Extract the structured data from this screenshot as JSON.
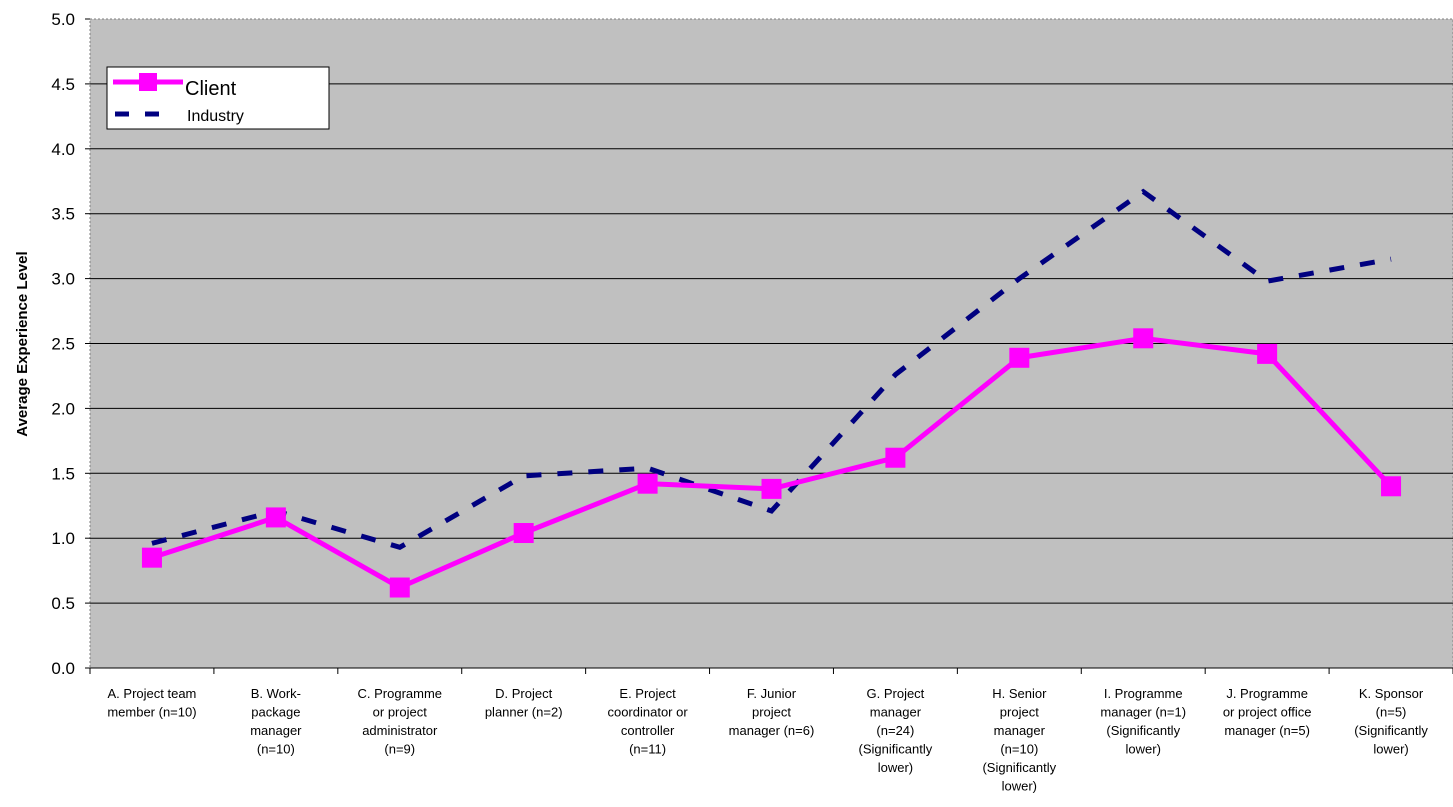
{
  "chart_data": {
    "type": "line",
    "title": "",
    "xlabel": "",
    "ylabel": "Average Experience Level",
    "ylim": [
      0,
      5
    ],
    "yticks": [
      "0.0",
      "0.5",
      "1.0",
      "1.5",
      "2.0",
      "2.5",
      "3.0",
      "3.5",
      "4.0",
      "4.5",
      "5.0"
    ],
    "grid": "horizontal",
    "legend_position": "top-left",
    "categories": [
      [
        "A. Project team",
        "member (n=10)"
      ],
      [
        "B. Work-",
        "package",
        "manager",
        "(n=10)"
      ],
      [
        "C. Programme",
        "or project",
        "administrator",
        "(n=9)"
      ],
      [
        "D. Project",
        "planner (n=2)"
      ],
      [
        "E. Project",
        "coordinator or",
        "controller",
        "(n=11)"
      ],
      [
        "F. Junior",
        "project",
        "manager (n=6)"
      ],
      [
        "G. Project",
        "manager",
        "(n=24)",
        "(Significantly",
        "lower)"
      ],
      [
        "H. Senior",
        "project",
        "manager",
        "(n=10)",
        "(Significantly",
        "lower)"
      ],
      [
        "I. Programme",
        "manager (n=1)",
        "(Significantly",
        "lower)"
      ],
      [
        "J. Programme",
        "or project office",
        "manager (n=5)"
      ],
      [
        "K. Sponsor",
        "(n=5)",
        "(Significantly",
        "lower)"
      ]
    ],
    "series": [
      {
        "name": "Client",
        "color": "#ff00ff",
        "style": "solid-square-markers",
        "values": [
          0.85,
          1.16,
          0.62,
          1.04,
          1.42,
          1.38,
          1.62,
          2.39,
          2.54,
          2.42,
          1.4
        ]
      },
      {
        "name": "Industry",
        "color": "#000080",
        "style": "dashed",
        "values": [
          0.96,
          1.21,
          0.93,
          1.48,
          1.54,
          1.21,
          2.26,
          3.0,
          3.67,
          2.98,
          3.15
        ]
      }
    ]
  }
}
